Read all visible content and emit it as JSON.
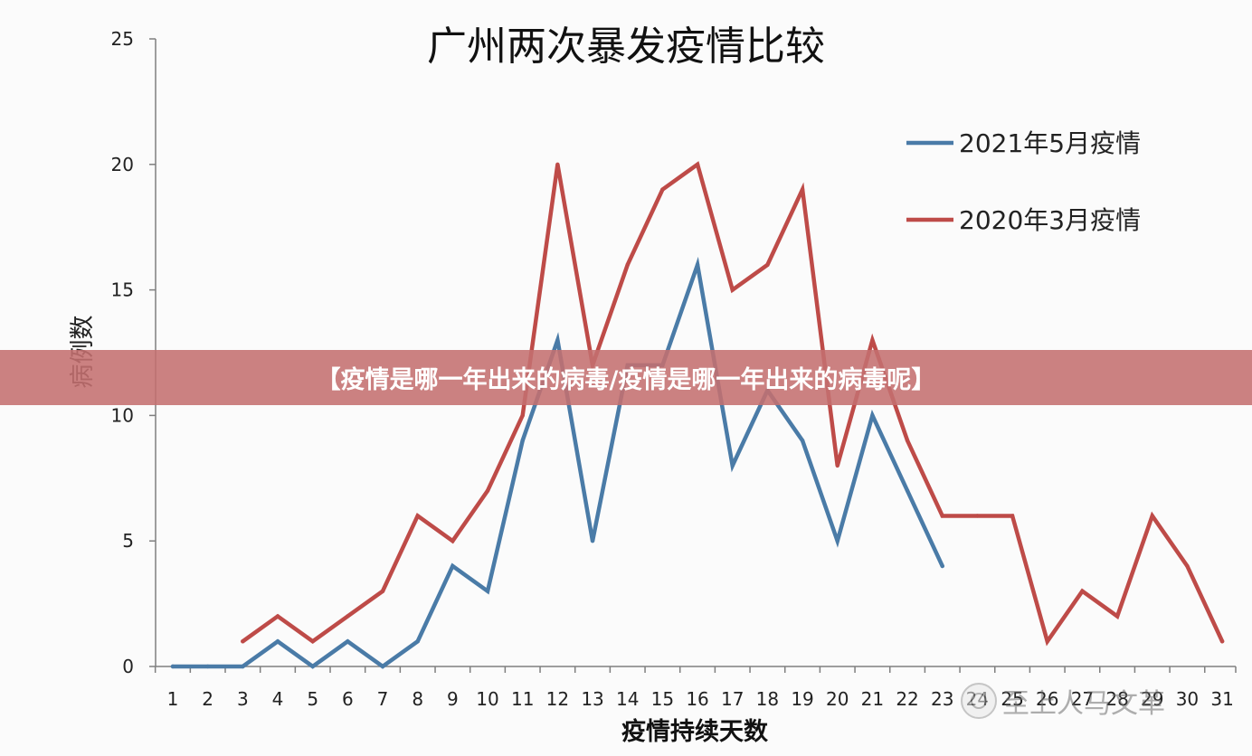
{
  "banner": {
    "text": "【疫情是哪一年出来的病毒/疫情是哪一年出来的病毒呢】"
  },
  "watermark": {
    "text": "至上人马文革",
    "icon": "wechat-watermark-icon"
  },
  "colors": {
    "series_2021": "#4a7ba7",
    "series_2020": "#be4b48",
    "axis": "#7f7f7f",
    "banner": "#c47070"
  },
  "chart_data": {
    "type": "line",
    "title": "广州两次暴发疫情比较",
    "xlabel": "疫情持续天数",
    "ylabel": "病例数",
    "ylim": [
      0,
      25
    ],
    "yticks": [
      0,
      5,
      10,
      15,
      20,
      25
    ],
    "categories": [
      "1",
      "2",
      "3",
      "4",
      "5",
      "6",
      "7",
      "8",
      "9",
      "10",
      "11",
      "12",
      "13",
      "14",
      "15",
      "16",
      "17",
      "18",
      "19",
      "20",
      "21",
      "22",
      "23",
      "24",
      "25",
      "26",
      "27",
      "28",
      "29",
      "30",
      "31"
    ],
    "grid": false,
    "legend_position": "top-right",
    "series": [
      {
        "name": "2021年5月疫情",
        "color_key": "series_2021",
        "x": [
          1,
          2,
          3,
          4,
          5,
          6,
          7,
          8,
          9,
          10,
          11,
          12,
          13,
          14,
          15,
          16,
          17,
          18,
          19,
          20,
          21,
          22,
          23
        ],
        "values": [
          0,
          0,
          0,
          1,
          0,
          1,
          0,
          1,
          4,
          3,
          9,
          13,
          5,
          12,
          12,
          16,
          8,
          11,
          9,
          5,
          10,
          7,
          4
        ]
      },
      {
        "name": "2020年3月疫情",
        "color_key": "series_2020",
        "x": [
          3,
          4,
          5,
          6,
          7,
          8,
          9,
          10,
          11,
          12,
          13,
          14,
          15,
          16,
          17,
          18,
          19,
          20,
          21,
          22,
          23,
          24,
          25,
          26,
          27,
          28,
          29,
          30,
          31
        ],
        "values": [
          1,
          2,
          1,
          2,
          3,
          6,
          5,
          7,
          10,
          20,
          12,
          16,
          19,
          20,
          15,
          16,
          19,
          8,
          13,
          9,
          6,
          6,
          6,
          1,
          3,
          2,
          6,
          4,
          1
        ]
      }
    ]
  }
}
